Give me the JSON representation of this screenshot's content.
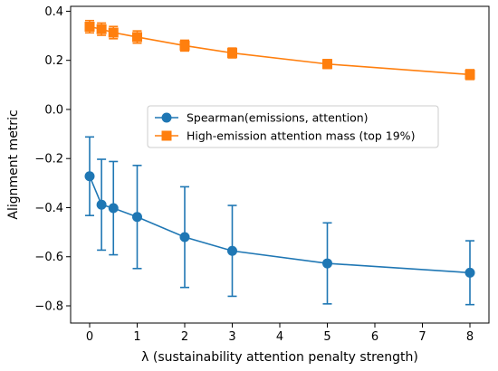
{
  "chart_data": {
    "type": "line",
    "xlabel": "λ (sustainability attention penalty strength)",
    "ylabel": "Alignment metric",
    "xlim": [
      -0.4,
      8.4
    ],
    "ylim": [
      -0.87,
      0.42
    ],
    "xticks": [
      0,
      1,
      2,
      3,
      4,
      5,
      6,
      7,
      8
    ],
    "xtick_labels": [
      "0",
      "1",
      "2",
      "3",
      "4",
      "5",
      "6",
      "7",
      "8"
    ],
    "yticks": [
      0.4,
      0.2,
      0.0,
      -0.2,
      -0.4,
      -0.6,
      -0.8
    ],
    "ytick_labels": [
      "0.4",
      "0.2",
      "0.0",
      "−0.2",
      "−0.4",
      "−0.6",
      "−0.8"
    ],
    "grid": false,
    "legend_position": "center-right",
    "series": [
      {
        "name": "Spearman(emissions, attention)",
        "color": "#1f77b4",
        "marker": "circle",
        "x": [
          0,
          0.25,
          0.5,
          1,
          2,
          3,
          5,
          8
        ],
        "y": [
          -0.272,
          -0.388,
          -0.402,
          -0.438,
          -0.52,
          -0.576,
          -0.627,
          -0.665
        ],
        "err": [
          0.16,
          0.185,
          0.19,
          0.21,
          0.205,
          0.185,
          0.165,
          0.13
        ]
      },
      {
        "name": "High-emission attention mass (top 19%)",
        "color": "#ff7f0e",
        "marker": "square",
        "x": [
          0,
          0.25,
          0.5,
          1,
          2,
          3,
          5,
          8
        ],
        "y": [
          0.337,
          0.327,
          0.313,
          0.295,
          0.26,
          0.23,
          0.185,
          0.142
        ],
        "err": [
          0.025,
          0.025,
          0.025,
          0.025,
          0.022,
          0.02,
          0.018,
          0.02
        ]
      }
    ]
  }
}
